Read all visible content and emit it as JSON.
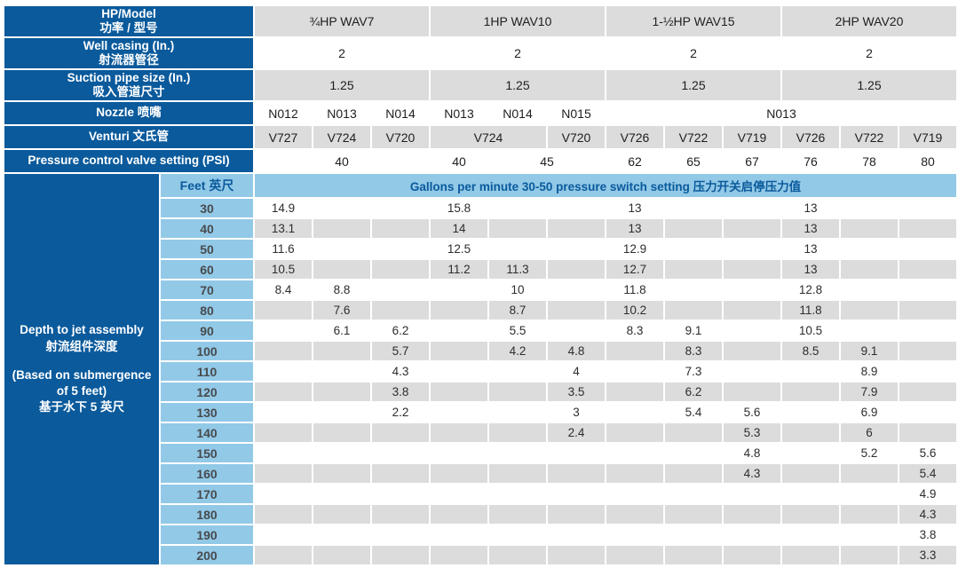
{
  "colors": {
    "dark_blue": "#0A5A9C",
    "light_blue": "#92C9E7",
    "row_gray": "#DCDCDC",
    "row_white": "#FFFFFF"
  },
  "table": {
    "header_rows": [
      {
        "shade": "gray",
        "model_row": true,
        "label_en": "HP/Model",
        "label_zh": "功率 / 型号",
        "cells": [
          {
            "text": "¾HP WAV7",
            "span": 3
          },
          {
            "text": "1HP WAV10",
            "span": 3
          },
          {
            "text": "1-½HP WAV15",
            "span": 3
          },
          {
            "text": "2HP WAV20",
            "span": 3
          }
        ]
      },
      {
        "shade": "white",
        "label_en": "Well casing (In.)",
        "label_zh": "射流器管径",
        "cells": [
          {
            "text": "2",
            "span": 3
          },
          {
            "text": "2",
            "span": 3
          },
          {
            "text": "2",
            "span": 3
          },
          {
            "text": "2",
            "span": 3
          }
        ]
      },
      {
        "shade": "gray",
        "label_en": "Suction pipe size (In.)",
        "label_zh": "吸入管道尺寸",
        "cells": [
          {
            "text": "1.25",
            "span": 3
          },
          {
            "text": "1.25",
            "span": 3
          },
          {
            "text": "1.25",
            "span": 3
          },
          {
            "text": "1.25",
            "span": 3
          }
        ]
      },
      {
        "shade": "white",
        "label_en": "Nozzle 喷嘴",
        "label_zh": "",
        "cells": [
          {
            "text": "N012",
            "span": 1
          },
          {
            "text": "N013",
            "span": 1
          },
          {
            "text": "N014",
            "span": 1
          },
          {
            "text": "N013",
            "span": 1
          },
          {
            "text": "N014",
            "span": 1
          },
          {
            "text": "N015",
            "span": 1
          },
          {
            "text": "N013",
            "span": 6
          }
        ]
      },
      {
        "shade": "gray",
        "label_en": "Venturi 文氏管",
        "label_zh": "",
        "cells": [
          {
            "text": "V727",
            "span": 1
          },
          {
            "text": "V724",
            "span": 1
          },
          {
            "text": "V720",
            "span": 1
          },
          {
            "text": "V724",
            "span": 2
          },
          {
            "text": "V720",
            "span": 1
          },
          {
            "text": "V726",
            "span": 1
          },
          {
            "text": "V722",
            "span": 1
          },
          {
            "text": "V719",
            "span": 1
          },
          {
            "text": "V726",
            "span": 1
          },
          {
            "text": "V722",
            "span": 1
          },
          {
            "text": "V719",
            "span": 1
          }
        ]
      },
      {
        "shade": "white",
        "label_en": "Pressure control valve setting (PSI)",
        "label_zh": "",
        "cells": [
          {
            "text": "40",
            "span": 3
          },
          {
            "text": "40",
            "span": 1
          },
          {
            "text": "45",
            "span": 2
          },
          {
            "text": "62",
            "span": 1
          },
          {
            "text": "65",
            "span": 1
          },
          {
            "text": "67",
            "span": 1
          },
          {
            "text": "76",
            "span": 1
          },
          {
            "text": "78",
            "span": 1
          },
          {
            "text": "80",
            "span": 1
          }
        ]
      }
    ],
    "body": {
      "label_lines": [
        "Depth to jet assembly",
        "射流组件深度",
        "",
        "(Based on submergence",
        "of 5 feet)",
        "基于水下 5 英尺"
      ],
      "feet_header": "Feet 英尺",
      "gpm_header": "Gallons per minute 30-50 pressure switch setting 压力开关启停压力值",
      "rows": [
        {
          "feet": "30",
          "values": [
            "14.9",
            "",
            "",
            "15.8",
            "",
            "",
            "13",
            "",
            "",
            "13",
            "",
            ""
          ]
        },
        {
          "feet": "40",
          "values": [
            "13.1",
            "",
            "",
            "14",
            "",
            "",
            "13",
            "",
            "",
            "13",
            "",
            ""
          ]
        },
        {
          "feet": "50",
          "values": [
            "11.6",
            "",
            "",
            "12.5",
            "",
            "",
            "12.9",
            "",
            "",
            "13",
            "",
            ""
          ]
        },
        {
          "feet": "60",
          "values": [
            "10.5",
            "",
            "",
            "11.2",
            "11.3",
            "",
            "12.7",
            "",
            "",
            "13",
            "",
            ""
          ]
        },
        {
          "feet": "70",
          "values": [
            "8.4",
            "8.8",
            "",
            "",
            "10",
            "",
            "11.8",
            "",
            "",
            "12.8",
            "",
            ""
          ]
        },
        {
          "feet": "80",
          "values": [
            "",
            "7.6",
            "",
            "",
            "8.7",
            "",
            "10.2",
            "",
            "",
            "11.8",
            "",
            ""
          ]
        },
        {
          "feet": "90",
          "values": [
            "",
            "6.1",
            "6.2",
            "",
            "5.5",
            "",
            "8.3",
            "9.1",
            "",
            "10.5",
            "",
            ""
          ]
        },
        {
          "feet": "100",
          "values": [
            "",
            "",
            "5.7",
            "",
            "4.2",
            "4.8",
            "",
            "8.3",
            "",
            "8.5",
            "9.1",
            ""
          ]
        },
        {
          "feet": "110",
          "values": [
            "",
            "",
            "4.3",
            "",
            "",
            "4",
            "",
            "7.3",
            "",
            "",
            "8.9",
            ""
          ]
        },
        {
          "feet": "120",
          "values": [
            "",
            "",
            "3.8",
            "",
            "",
            "3.5",
            "",
            "6.2",
            "",
            "",
            "7.9",
            ""
          ]
        },
        {
          "feet": "130",
          "values": [
            "",
            "",
            "2.2",
            "",
            "",
            "3",
            "",
            "5.4",
            "5.6",
            "",
            "6.9",
            ""
          ]
        },
        {
          "feet": "140",
          "values": [
            "",
            "",
            "",
            "",
            "",
            "2.4",
            "",
            "",
            "5.3",
            "",
            "6",
            ""
          ]
        },
        {
          "feet": "150",
          "values": [
            "",
            "",
            "",
            "",
            "",
            "",
            "",
            "",
            "4.8",
            "",
            "5.2",
            "5.6"
          ]
        },
        {
          "feet": "160",
          "values": [
            "",
            "",
            "",
            "",
            "",
            "",
            "",
            "",
            "4.3",
            "",
            "",
            "5.4"
          ]
        },
        {
          "feet": "170",
          "values": [
            "",
            "",
            "",
            "",
            "",
            "",
            "",
            "",
            "",
            "",
            "",
            "4.9"
          ]
        },
        {
          "feet": "180",
          "values": [
            "",
            "",
            "",
            "",
            "",
            "",
            "",
            "",
            "",
            "",
            "",
            "4.3"
          ]
        },
        {
          "feet": "190",
          "values": [
            "",
            "",
            "",
            "",
            "",
            "",
            "",
            "",
            "",
            "",
            "",
            "3.8"
          ]
        },
        {
          "feet": "200",
          "values": [
            "",
            "",
            "",
            "",
            "",
            "",
            "",
            "",
            "",
            "",
            "",
            "3.3"
          ]
        }
      ]
    }
  }
}
